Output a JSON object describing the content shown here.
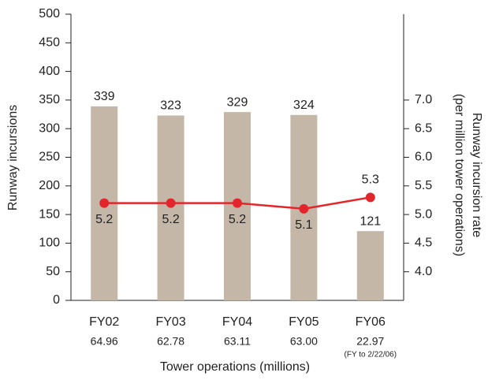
{
  "chart_data": {
    "type": "combo",
    "y_label": "Runway incursions",
    "y2_label": [
      "Runway incursion rate",
      "(per million tower operations)"
    ],
    "x_label": "Tower operations (millions)",
    "categories": [
      "FY02",
      "FY03",
      "FY04",
      "FY05",
      "FY06"
    ],
    "x_sublabels": [
      "64.96",
      "62.78",
      "63.11",
      "63.00",
      "22.97"
    ],
    "x_note": {
      "index": 4,
      "text": "(FY to 2/22/06)"
    },
    "series": [
      {
        "type": "bar",
        "color": "#c4b7a8",
        "axis": "y",
        "values": [
          339,
          323,
          329,
          324,
          121
        ]
      },
      {
        "type": "line",
        "color": "#e3262b",
        "axis": "y2",
        "values": [
          5.2,
          5.2,
          5.2,
          5.1,
          5.3
        ]
      }
    ],
    "ylim": [
      0,
      500
    ],
    "yticks": [
      0,
      50,
      100,
      150,
      200,
      250,
      300,
      350,
      400,
      450,
      500
    ],
    "y2lim": [
      3.5,
      8.5
    ],
    "y2ticks": [
      {
        "value": 4,
        "label": "4.0"
      },
      {
        "value": 4.5,
        "label": "4.5"
      },
      {
        "value": 5,
        "label": "5.0"
      },
      {
        "value": 5.5,
        "label": "5.5"
      },
      {
        "value": 6,
        "label": "6.0"
      },
      {
        "value": 6.5,
        "label": "6.5"
      },
      {
        "value": 7,
        "label": "7.0"
      }
    ]
  }
}
